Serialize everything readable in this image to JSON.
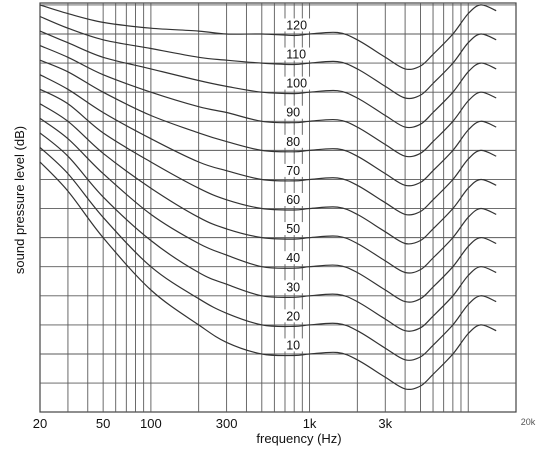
{
  "chart_data": {
    "type": "line",
    "title": "",
    "xlabel": "frequency (Hz)",
    "ylabel": "sound pressure level (dB)",
    "x_scale": "log",
    "xlim": [
      20,
      20000
    ],
    "x_tick_labels": [
      {
        "value": 20,
        "label": "20"
      },
      {
        "value": 50,
        "label": "50"
      },
      {
        "value": 100,
        "label": "100"
      },
      {
        "value": 300,
        "label": "300"
      },
      {
        "value": 1000,
        "label": "1k"
      },
      {
        "value": 3000,
        "label": "3k"
      },
      {
        "value": 20000,
        "label": "20k"
      }
    ],
    "y_tick_labels": [],
    "grid": true,
    "x": [
      20,
      30,
      50,
      100,
      200,
      300,
      500,
      800,
      1000,
      1500,
      2000,
      3000,
      4000,
      5000,
      6000,
      8000,
      10000,
      12000,
      15000
    ],
    "series": [
      {
        "name": "10",
        "values": [
          76,
          66,
          50,
          32,
          20,
          14,
          10,
          9.5,
          10,
          10.5,
          8,
          2,
          -2,
          -1,
          3,
          10,
          17,
          20,
          18
        ]
      },
      {
        "name": "20",
        "values": [
          81,
          72,
          57,
          40,
          29,
          24,
          20,
          19.5,
          20,
          20.5,
          18,
          12,
          8,
          9,
          13,
          20,
          27,
          30,
          28
        ]
      },
      {
        "name": "30",
        "values": [
          86,
          78,
          64,
          49,
          38,
          34,
          30,
          29.5,
          30,
          30.5,
          28,
          22,
          18,
          19,
          23,
          30,
          37,
          40,
          38
        ]
      },
      {
        "name": "40",
        "values": [
          91,
          84,
          72,
          58,
          48,
          44,
          40,
          39.5,
          40,
          40.5,
          38,
          32,
          28,
          29,
          33,
          40,
          47,
          50,
          48
        ]
      },
      {
        "name": "50",
        "values": [
          96,
          90,
          79,
          67,
          57,
          53,
          50,
          49.5,
          50,
          50.5,
          48,
          42,
          38,
          39,
          43,
          50,
          57,
          60,
          58
        ]
      },
      {
        "name": "60",
        "values": [
          101,
          96,
          86,
          76,
          67,
          63,
          60,
          59.5,
          60,
          60.5,
          58,
          52,
          48,
          49,
          53,
          60,
          67,
          70,
          68
        ]
      },
      {
        "name": "70",
        "values": [
          106,
          101,
          93,
          84,
          76,
          73,
          70,
          69.5,
          70,
          70.5,
          68,
          62,
          58,
          59,
          63,
          70,
          77,
          80,
          78
        ]
      },
      {
        "name": "80",
        "values": [
          111,
          107,
          100,
          92,
          86,
          83,
          80,
          79.5,
          80,
          80.5,
          78,
          72,
          68,
          69,
          73,
          80,
          87,
          90,
          88
        ]
      },
      {
        "name": "90",
        "values": [
          116,
          112,
          106,
          100,
          95,
          93,
          90,
          89.5,
          90,
          90.5,
          88,
          82,
          78,
          79,
          83,
          90,
          97,
          100,
          98
        ]
      },
      {
        "name": "100",
        "values": [
          121,
          117,
          112,
          108,
          104,
          102,
          100,
          99.5,
          100,
          100.5,
          98,
          92,
          88,
          89,
          93,
          100,
          107,
          110,
          108
        ]
      },
      {
        "name": "110",
        "values": [
          126,
          122,
          118,
          115,
          112,
          111,
          110,
          109.5,
          110,
          110.5,
          108,
          102,
          98,
          99,
          103,
          110,
          117,
          120,
          118
        ]
      },
      {
        "name": "120",
        "values": [
          130,
          127,
          124,
          122,
          121,
          120,
          120,
          119.5,
          120,
          120.5,
          118,
          112,
          108,
          109,
          113,
          120,
          127,
          130,
          128
        ]
      }
    ]
  }
}
